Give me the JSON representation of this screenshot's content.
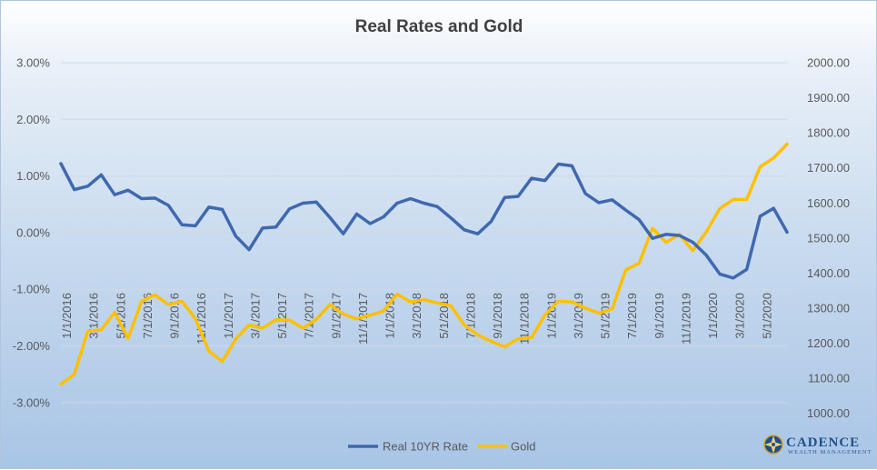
{
  "colors": {
    "real_rate": "#3f68b0",
    "gold": "#ffc000",
    "gridline": "#d0d8e4",
    "brand": "#1f4e8c"
  },
  "branding": {
    "name": "CADENCE",
    "subtitle": "WEALTH MANAGEMENT",
    "icon": "compass-rose-logo"
  },
  "chart_data": {
    "type": "line",
    "title": "Real Rates and Gold",
    "xlabel": "",
    "ylabel": "",
    "y_left": {
      "min": -0.035,
      "max": 0.03,
      "ticks": [
        -0.03,
        -0.02,
        -0.01,
        0.0,
        0.01,
        0.02,
        0.03
      ],
      "tick_labels": [
        "-3.00%",
        "-2.00%",
        "-1.00%",
        "0.00%",
        "1.00%",
        "2.00%",
        "3.00%"
      ]
    },
    "y_right": {
      "min": 950,
      "max": 2000,
      "ticks": [
        1000,
        1100,
        1200,
        1300,
        1400,
        1500,
        1600,
        1700,
        1800,
        1900,
        2000
      ],
      "tick_labels": [
        "1000.00",
        "1100.00",
        "1200.00",
        "1300.00",
        "1400.00",
        "1500.00",
        "1600.00",
        "1700.00",
        "1800.00",
        "1900.00",
        "2000.00"
      ]
    },
    "x_tick_labels": [
      "1/1/2016",
      "3/1/2016",
      "5/1/2016",
      "7/1/2016",
      "9/1/2016",
      "11/1/2016",
      "1/1/2017",
      "3/1/2017",
      "5/1/2017",
      "7/1/2017",
      "9/1/2017",
      "11/1/2017",
      "1/1/2018",
      "3/1/2018",
      "5/1/2018",
      "7/1/2018",
      "9/1/2018",
      "11/1/2018",
      "1/1/2019",
      "3/1/2019",
      "5/1/2019",
      "7/1/2019",
      "9/1/2019",
      "11/1/2019",
      "1/1/2020",
      "3/1/2020",
      "5/1/2020"
    ],
    "grid": true,
    "legend_position": "bottom",
    "series": [
      {
        "name": "Real 10YR Rate",
        "axis": "left",
        "color": "#3f68b0",
        "values": [
          0.0122,
          0.0076,
          0.0082,
          0.0102,
          0.0067,
          0.0075,
          0.006,
          0.0061,
          0.0048,
          0.0014,
          0.0012,
          0.0045,
          0.0041,
          -0.0006,
          -0.003,
          0.0008,
          0.001,
          0.0042,
          0.0052,
          0.0054,
          0.0027,
          -0.0002,
          0.0033,
          0.0016,
          0.0028,
          0.0052,
          0.006,
          0.0052,
          0.0046,
          0.0026,
          0.0005,
          -0.0002,
          0.002,
          0.0062,
          0.0064,
          0.0096,
          0.0092,
          0.0121,
          0.0118,
          0.0069,
          0.0053,
          0.0058,
          0.004,
          0.0023,
          -0.001,
          -0.0003,
          -0.0005,
          -0.0017,
          -0.004,
          -0.0073,
          -0.008,
          -0.0065,
          0.0029,
          0.0043,
          0.0001
        ]
      },
      {
        "name": "Gold",
        "axis": "right",
        "color": "#ffc000",
        "values": [
          1083,
          1112,
          1235,
          1238,
          1288,
          1214,
          1320,
          1338,
          1310,
          1320,
          1270,
          1178,
          1148,
          1212,
          1252,
          1243,
          1267,
          1266,
          1243,
          1268,
          1310,
          1283,
          1270,
          1280,
          1292,
          1340,
          1318,
          1324,
          1315,
          1307,
          1252,
          1224,
          1205,
          1190,
          1213,
          1216,
          1281,
          1320,
          1318,
          1300,
          1286,
          1298,
          1409,
          1428,
          1528,
          1488,
          1510,
          1464,
          1518,
          1584,
          1610,
          1610,
          1703,
          1728,
          1768
        ]
      }
    ]
  }
}
